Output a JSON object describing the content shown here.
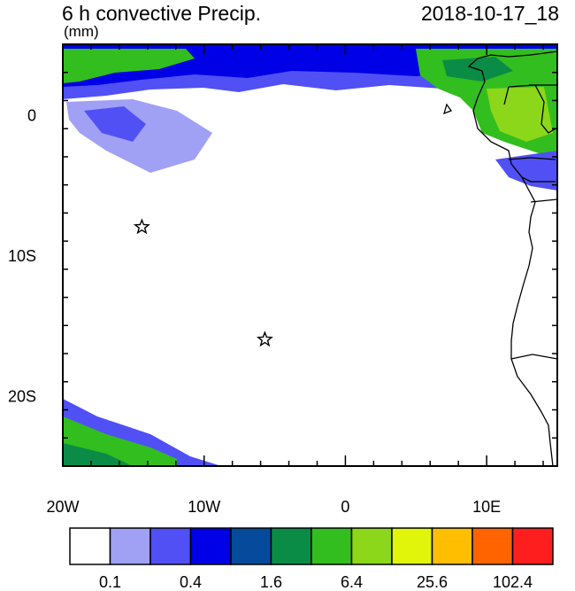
{
  "header": {
    "title": "6 h convective Precip.",
    "units": "(mm)",
    "datetime": "2018-10-17_18"
  },
  "map": {
    "projection": "cylindrical-equidistant",
    "lon_range": [
      -20,
      15
    ],
    "lat_range": [
      -25,
      5
    ],
    "lon_tick_labels": [
      {
        "lon": -20,
        "text": "20W"
      },
      {
        "lon": -10,
        "text": "10W"
      },
      {
        "lon": 0,
        "text": "0"
      },
      {
        "lon": 10,
        "text": "10E"
      }
    ],
    "lat_tick_labels": [
      {
        "lat": 0,
        "text": "0"
      },
      {
        "lat": -10,
        "text": "10S"
      },
      {
        "lat": -20,
        "text": "20S"
      }
    ],
    "markers": [
      {
        "type": "star",
        "lon": -14.4,
        "lat": -8.0
      },
      {
        "type": "star",
        "lon": -5.7,
        "lat": -16.0
      }
    ],
    "land_color": "#ffffff",
    "coastline_color": "#000000"
  },
  "colorbar": {
    "colors": [
      "#ffffff",
      "#a0a0f5",
      "#5050f5",
      "#0000e6",
      "#064b9b",
      "#0a8c46",
      "#32be1e",
      "#8cd719",
      "#e1f50a",
      "#ffbe00",
      "#ff6400",
      "#ff1e1e"
    ],
    "labels": [
      {
        "after_box": 1,
        "text": "0.1"
      },
      {
        "after_box": 3,
        "text": "0.4"
      },
      {
        "after_box": 5,
        "text": "1.6"
      },
      {
        "after_box": 7,
        "text": "6.4"
      },
      {
        "after_box": 9,
        "text": "25.6"
      },
      {
        "after_box": 11,
        "text": "102.4"
      }
    ]
  }
}
